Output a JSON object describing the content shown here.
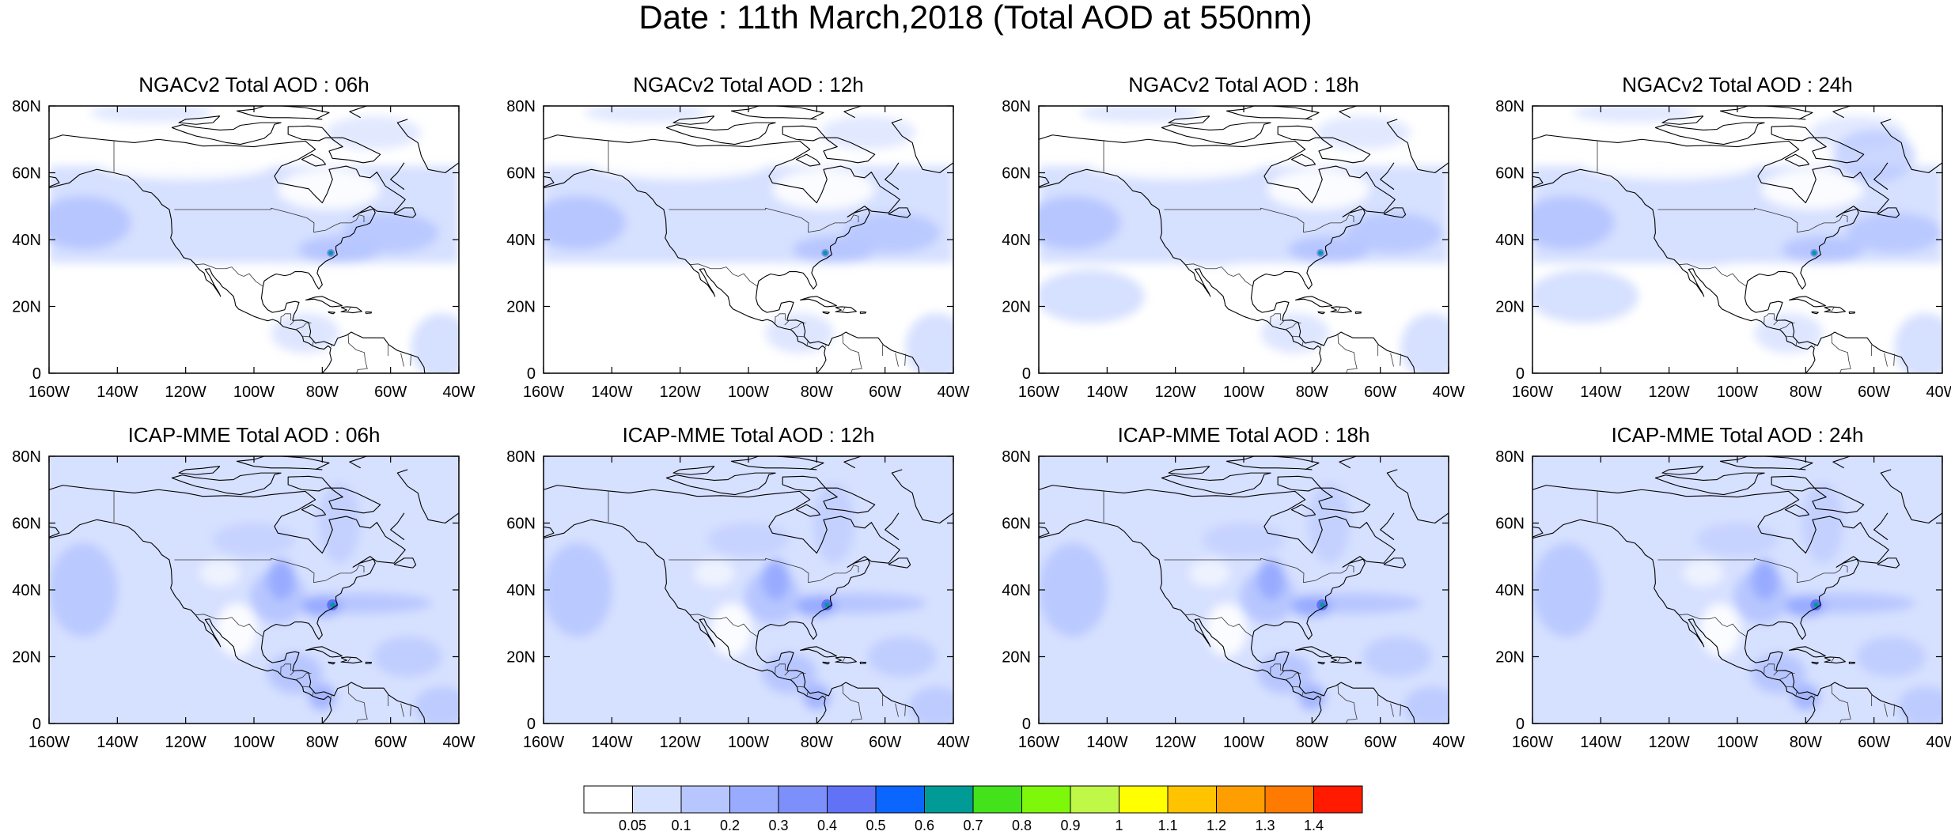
{
  "title": "Date : 11th March,2018 (Total AOD at 550nm)",
  "lat_labels": [
    "80N",
    "60N",
    "40N",
    "20N",
    "0"
  ],
  "lon_labels": [
    "160W",
    "140W",
    "120W",
    "100W",
    "80W",
    "60W",
    "40W"
  ],
  "panels": [
    {
      "title": "NGACv2 Total AOD : 06h",
      "model": "NGACv2",
      "hour": 6
    },
    {
      "title": "NGACv2 Total AOD : 12h",
      "model": "NGACv2",
      "hour": 12
    },
    {
      "title": "NGACv2 Total AOD : 18h",
      "model": "NGACv2",
      "hour": 18
    },
    {
      "title": "NGACv2 Total AOD : 24h",
      "model": "NGACv2",
      "hour": 24
    },
    {
      "title": "ICAP-MME Total AOD : 06h",
      "model": "ICAP-MME",
      "hour": 6
    },
    {
      "title": "ICAP-MME Total AOD : 12h",
      "model": "ICAP-MME",
      "hour": 12
    },
    {
      "title": "ICAP-MME Total AOD : 18h",
      "model": "ICAP-MME",
      "hour": 18
    },
    {
      "title": "ICAP-MME Total AOD : 24h",
      "model": "ICAP-MME",
      "hour": 24
    }
  ],
  "colorbar": {
    "labels": [
      "0.05",
      "0.1",
      "0.2",
      "0.3",
      "0.4",
      "0.5",
      "0.6",
      "0.7",
      "0.8",
      "0.9",
      "1",
      "1.1",
      "1.2",
      "1.3",
      "1.4"
    ],
    "colors": [
      "#ffffff",
      "#d6e0ff",
      "#b7c6ff",
      "#98abff",
      "#7d8ffb",
      "#6172f6",
      "#0a66ff",
      "#009b96",
      "#44e21b",
      "#7df70a",
      "#c0f847",
      "#ffff00",
      "#ffc300",
      "#ff9e00",
      "#ff7a00",
      "#ff1a00"
    ]
  }
}
